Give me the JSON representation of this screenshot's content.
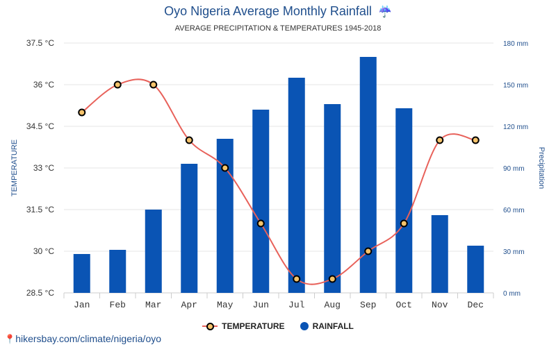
{
  "header": {
    "title": "Oyo Nigeria Average Monthly Rainfall",
    "title_icon": "umbrella-rain-icon",
    "subtitle": "AVERAGE PRECIPITATION & TEMPERATURES 1945-2018"
  },
  "legend": {
    "temperature_label": "TEMPERATURE",
    "rainfall_label": "RAINFALL"
  },
  "footer": {
    "credit": "hikersbay.com/climate/nigeria/oyo",
    "credit_icon": "location-pin-icon"
  },
  "colors": {
    "bar": "#0a54b4",
    "line": "#e8615a",
    "marker_fill": "#f5c36b",
    "left_axis_text": "#333333",
    "right_axis_text": "#1f4e8c"
  },
  "chart_data": {
    "type": "bar",
    "title": "Oyo Nigeria Average Monthly Rainfall",
    "subtitle": "AVERAGE PRECIPITATION & TEMPERATURES 1945-2018",
    "categories": [
      "Jan",
      "Feb",
      "Mar",
      "Apr",
      "May",
      "Jun",
      "Jul",
      "Aug",
      "Sep",
      "Oct",
      "Nov",
      "Dec"
    ],
    "series": [
      {
        "name": "RAINFALL",
        "kind": "bar",
        "axis": "right",
        "unit": "mm",
        "values": [
          28,
          31,
          60,
          93,
          111,
          132,
          155,
          136,
          170,
          133,
          56,
          34
        ]
      },
      {
        "name": "TEMPERATURE",
        "kind": "line",
        "axis": "left",
        "unit": "°C",
        "values": [
          35,
          36,
          36,
          34,
          33,
          31,
          29,
          29,
          30,
          31,
          34,
          34
        ]
      }
    ],
    "y_left": {
      "label": "TEMPERATURE",
      "min": 28.5,
      "max": 37.5,
      "ticks": [
        "28.5 °C",
        "30 °C",
        "31.5 °C",
        "33 °C",
        "34.5 °C",
        "36 °C",
        "37.5 °C"
      ]
    },
    "y_right": {
      "label": "Precipitation",
      "min": 0,
      "max": 180,
      "ticks": [
        "0 mm",
        "30 mm",
        "60 mm",
        "90 mm",
        "120 mm",
        "150 mm",
        "180 mm"
      ]
    },
    "grid": true,
    "legend_position": "bottom-center"
  }
}
